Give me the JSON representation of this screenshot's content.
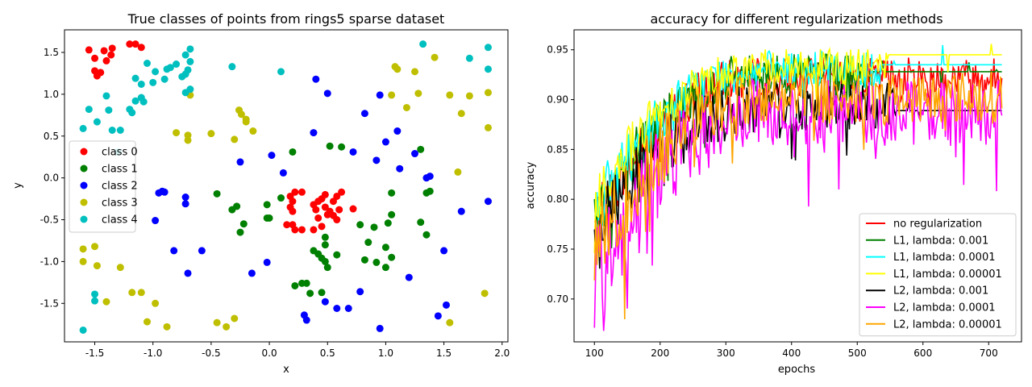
{
  "chart_data": [
    {
      "type": "scatter",
      "title": "True classes of points from rings5 sparse dataset",
      "xlabel": "x",
      "ylabel": "y",
      "xlim": [
        -1.76,
        2.05
      ],
      "ylim": [
        -1.96,
        1.77
      ],
      "xticks": [
        "-1.5",
        "-1.0",
        "-0.5",
        "0.0",
        "0.5",
        "1.0",
        "1.5",
        "2.0"
      ],
      "yticks": [
        "-1.5",
        "-1.0",
        "-0.5",
        "0.0",
        "0.5",
        "1.0",
        "1.5"
      ],
      "legend_position": "center-left",
      "series": [
        {
          "name": "class 0",
          "color": "#ff0000",
          "points": [
            [
              -1.55,
              1.53
            ],
            [
              -1.5,
              1.43
            ],
            [
              -1.5,
              1.28
            ],
            [
              -1.48,
              1.22
            ],
            [
              -1.45,
              1.26
            ],
            [
              -1.42,
              1.52
            ],
            [
              -1.4,
              1.4
            ],
            [
              -1.36,
              1.47
            ],
            [
              -1.35,
              1.55
            ],
            [
              -1.2,
              1.6
            ],
            [
              -1.15,
              1.6
            ],
            [
              -1.1,
              1.56
            ],
            [
              0.18,
              -0.22
            ],
            [
              0.2,
              -0.28
            ],
            [
              0.22,
              -0.17
            ],
            [
              0.28,
              -0.17
            ],
            [
              0.18,
              -0.35
            ],
            [
              0.2,
              -0.4
            ],
            [
              0.15,
              -0.56
            ],
            [
              0.2,
              -0.56
            ],
            [
              0.22,
              -0.62
            ],
            [
              0.28,
              -0.62
            ],
            [
              0.38,
              -0.32
            ],
            [
              0.4,
              -0.38
            ],
            [
              0.42,
              -0.28
            ],
            [
              0.45,
              -0.25
            ],
            [
              0.48,
              -0.2
            ],
            [
              0.42,
              -0.48
            ],
            [
              0.48,
              -0.35
            ],
            [
              0.52,
              -0.4
            ],
            [
              0.55,
              -0.45
            ],
            [
              0.58,
              -0.22
            ],
            [
              0.55,
              -0.28
            ],
            [
              0.6,
              -0.38
            ],
            [
              0.58,
              -0.5
            ],
            [
              0.5,
              -0.44
            ],
            [
              0.62,
              -0.17
            ],
            [
              0.72,
              -0.37
            ],
            [
              0.38,
              -0.62
            ],
            [
              0.45,
              -0.58
            ]
          ]
        },
        {
          "name": "class 1",
          "color": "#008000",
          "points": [
            [
              -0.45,
              -0.19
            ],
            [
              -0.32,
              -0.38
            ],
            [
              -0.28,
              -0.34
            ],
            [
              -0.22,
              -0.55
            ],
            [
              -0.25,
              -0.65
            ],
            [
              -0.02,
              -0.32
            ],
            [
              -0.02,
              -0.48
            ],
            [
              0.0,
              -0.48
            ],
            [
              0.1,
              -0.24
            ],
            [
              0.2,
              0.31
            ],
            [
              0.52,
              0.38
            ],
            [
              0.62,
              0.37
            ],
            [
              0.22,
              -1.29
            ],
            [
              0.28,
              -1.26
            ],
            [
              0.32,
              -1.26
            ],
            [
              0.35,
              -1.38
            ],
            [
              0.38,
              -0.87
            ],
            [
              0.42,
              -0.91
            ],
            [
              0.45,
              -0.96
            ],
            [
              0.48,
              -0.8
            ],
            [
              0.48,
              -0.71
            ],
            [
              0.48,
              -1.0
            ],
            [
              0.5,
              -1.07
            ],
            [
              0.45,
              -1.37
            ],
            [
              0.58,
              -0.92
            ],
            [
              0.78,
              -0.56
            ],
            [
              0.82,
              -0.98
            ],
            [
              0.85,
              -0.77
            ],
            [
              0.9,
              -0.59
            ],
            [
              0.92,
              -1.01
            ],
            [
              1.0,
              -1.07
            ],
            [
              1.0,
              -0.83
            ],
            [
              1.02,
              -0.54
            ],
            [
              1.05,
              -0.44
            ],
            [
              1.05,
              -0.95
            ],
            [
              1.05,
              -0.18
            ],
            [
              1.3,
              -0.53
            ],
            [
              1.35,
              -0.68
            ],
            [
              1.35,
              -0.18
            ],
            [
              1.38,
              -0.16
            ],
            [
              1.3,
              0.34
            ]
          ]
        },
        {
          "name": "class 2",
          "color": "#0000ff",
          "points": [
            [
              -0.98,
              -0.51
            ],
            [
              -0.95,
              -0.18
            ],
            [
              -0.92,
              -0.16
            ],
            [
              -0.9,
              -0.17
            ],
            [
              -0.82,
              -0.87
            ],
            [
              -0.72,
              -0.23
            ],
            [
              -0.72,
              -0.31
            ],
            [
              -0.7,
              -1.14
            ],
            [
              -0.58,
              -0.87
            ],
            [
              -0.25,
              0.19
            ],
            [
              -0.15,
              -1.14
            ],
            [
              -0.02,
              -1.01
            ],
            [
              0.02,
              0.27
            ],
            [
              0.12,
              0.06
            ],
            [
              0.38,
              0.54
            ],
            [
              0.4,
              1.18
            ],
            [
              0.5,
              1.01
            ],
            [
              0.48,
              -1.48
            ],
            [
              0.58,
              -1.56
            ],
            [
              0.68,
              -1.56
            ],
            [
              0.72,
              0.31
            ],
            [
              0.3,
              -1.64
            ],
            [
              0.32,
              -1.7
            ],
            [
              0.78,
              -1.36
            ],
            [
              0.82,
              0.77
            ],
            [
              0.92,
              0.21
            ],
            [
              0.95,
              0.99
            ],
            [
              0.95,
              -1.8
            ],
            [
              1.0,
              0.43
            ],
            [
              1.1,
              0.56
            ],
            [
              1.12,
              0.11
            ],
            [
              1.2,
              -1.19
            ],
            [
              1.25,
              0.29
            ],
            [
              1.35,
              0.0
            ],
            [
              1.38,
              0.02
            ],
            [
              1.45,
              -1.65
            ],
            [
              1.5,
              -0.87
            ],
            [
              1.52,
              -1.52
            ],
            [
              1.65,
              -0.4
            ],
            [
              1.88,
              -0.28
            ]
          ]
        },
        {
          "name": "class 3",
          "color": "#bfbf00",
          "points": [
            [
              -1.6,
              -0.85
            ],
            [
              -1.6,
              -1.0
            ],
            [
              -1.5,
              -0.82
            ],
            [
              -1.48,
              -1.05
            ],
            [
              -1.4,
              -1.48
            ],
            [
              -1.28,
              -1.07
            ],
            [
              -1.18,
              -1.37
            ],
            [
              -1.1,
              -1.37
            ],
            [
              -1.05,
              -1.72
            ],
            [
              -0.98,
              -1.5
            ],
            [
              -0.88,
              -1.78
            ],
            [
              -0.8,
              0.54
            ],
            [
              -0.7,
              0.51
            ],
            [
              -0.7,
              0.45
            ],
            [
              -0.68,
              0.99
            ],
            [
              -0.5,
              0.53
            ],
            [
              -0.45,
              -1.73
            ],
            [
              -0.37,
              -1.78
            ],
            [
              -0.3,
              0.46
            ],
            [
              -0.3,
              -1.68
            ],
            [
              -0.26,
              0.81
            ],
            [
              -0.24,
              0.76
            ],
            [
              -0.2,
              0.7
            ],
            [
              -0.2,
              0.67
            ],
            [
              -0.14,
              0.56
            ],
            [
              1.05,
              0.99
            ],
            [
              1.08,
              1.33
            ],
            [
              1.1,
              1.3
            ],
            [
              1.18,
              0.84
            ],
            [
              1.25,
              1.27
            ],
            [
              1.28,
              1.01
            ],
            [
              1.42,
              1.44
            ],
            [
              1.55,
              0.99
            ],
            [
              1.55,
              -1.73
            ],
            [
              1.62,
              0.07
            ],
            [
              1.65,
              0.77
            ],
            [
              1.72,
              0.98
            ],
            [
              1.85,
              -1.38
            ],
            [
              1.88,
              0.6
            ],
            [
              1.88,
              1.02
            ]
          ]
        },
        {
          "name": "class 4",
          "color": "#00bfbf",
          "points": [
            [
              -1.6,
              0.59
            ],
            [
              -1.6,
              -1.82
            ],
            [
              -1.55,
              0.82
            ],
            [
              -1.5,
              -1.47
            ],
            [
              -1.5,
              -1.39
            ],
            [
              -1.48,
              0.67
            ],
            [
              -1.4,
              0.98
            ],
            [
              -1.38,
              0.81
            ],
            [
              -1.35,
              0.57
            ],
            [
              -1.3,
              0.31
            ],
            [
              -1.28,
              0.57
            ],
            [
              -1.2,
              0.82
            ],
            [
              -1.18,
              0.78
            ],
            [
              -1.15,
              1.19
            ],
            [
              -1.15,
              0.92
            ],
            [
              -1.1,
              1.12
            ],
            [
              -1.1,
              0.96
            ],
            [
              -1.08,
              0.91
            ],
            [
              -1.05,
              1.37
            ],
            [
              -1.0,
              1.14
            ],
            [
              -0.98,
              1.27
            ],
            [
              -0.9,
              1.18
            ],
            [
              -0.88,
              1.3
            ],
            [
              -0.85,
              1.32
            ],
            [
              -0.8,
              1.36
            ],
            [
              -0.75,
              1.21
            ],
            [
              -0.72,
              1.24
            ],
            [
              -0.72,
              1.47
            ],
            [
              -0.7,
              1.29
            ],
            [
              -0.68,
              1.54
            ],
            [
              -0.68,
              1.06
            ],
            [
              -0.68,
              1.39
            ],
            [
              -0.72,
              1.02
            ],
            [
              -0.32,
              1.33
            ],
            [
              0.1,
              1.27
            ],
            [
              1.32,
              1.6
            ],
            [
              1.72,
              1.43
            ],
            [
              1.88,
              1.56
            ],
            [
              1.88,
              1.3
            ]
          ]
        }
      ]
    },
    {
      "type": "line",
      "title": "accuracy for different regularization methods",
      "xlabel": "epochs",
      "ylabel": "accuracy",
      "xlim": [
        69,
        750
      ],
      "ylim": [
        0.657,
        0.97
      ],
      "xticks": [
        "100",
        "200",
        "300",
        "400",
        "500",
        "600",
        "700"
      ],
      "yticks": [
        "0.70",
        "0.75",
        "0.80",
        "0.85",
        "0.90",
        "0.95"
      ],
      "legend_position": "lower-right",
      "x_range": [
        100,
        720
      ],
      "series": [
        {
          "name": "no regularization",
          "color": "#ff0000",
          "start": 0.775,
          "plateau": 0.925,
          "amplitude": 0.018,
          "final": 0.925
        },
        {
          "name": "L1, lambda: 0.001",
          "color": "#008000",
          "start": 0.785,
          "plateau": 0.928,
          "amplitude": 0.018,
          "final": 0.928
        },
        {
          "name": "L1, lambda: 0.0001",
          "color": "#00ffff",
          "start": 0.79,
          "plateau": 0.932,
          "amplitude": 0.017,
          "final": 0.935
        },
        {
          "name": "L1, lambda: 0.00001",
          "color": "#ffff00",
          "start": 0.8,
          "plateau": 0.935,
          "amplitude": 0.016,
          "final": 0.945
        },
        {
          "name": "L2, lambda: 0.001",
          "color": "#000000",
          "start": 0.77,
          "plateau": 0.895,
          "amplitude": 0.022,
          "final": 0.889
        },
        {
          "name": "L2, lambda: 0.0001",
          "color": "#ff00ff",
          "start": 0.72,
          "plateau": 0.89,
          "amplitude": 0.03,
          "final": 0.898
        },
        {
          "name": "L2, lambda: 0.00001",
          "color": "#ffa500",
          "start": 0.75,
          "plateau": 0.905,
          "amplitude": 0.024,
          "final": 0.92
        }
      ]
    }
  ]
}
